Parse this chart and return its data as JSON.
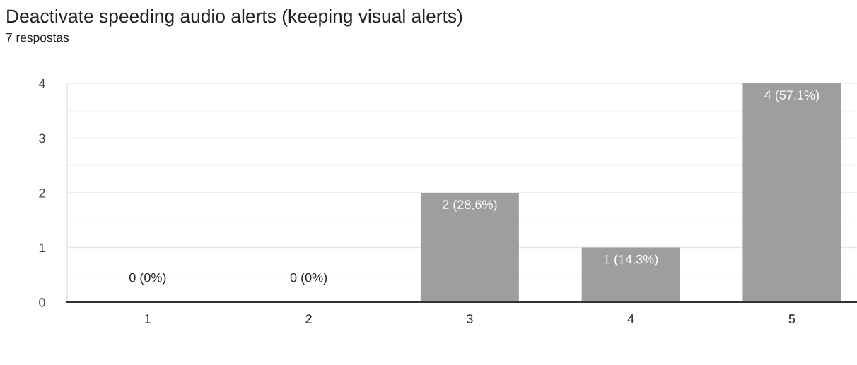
{
  "chart_data": {
    "type": "bar",
    "title": "Deactivate speeding audio alerts (keeping visual alerts)",
    "subtitle": "7 respostas",
    "categories": [
      "1",
      "2",
      "3",
      "4",
      "5"
    ],
    "values": [
      0,
      0,
      2,
      1,
      4
    ],
    "color": "#9e9e9e",
    "value_labels": [
      "0 (0%)",
      "0 (0%)",
      "2 (28,6%)",
      "1 (14,3%)",
      "4 (57,1%)"
    ],
    "ylim": [
      0,
      4
    ],
    "yticks": [
      0,
      1,
      2,
      3,
      4
    ],
    "grid": "y"
  }
}
